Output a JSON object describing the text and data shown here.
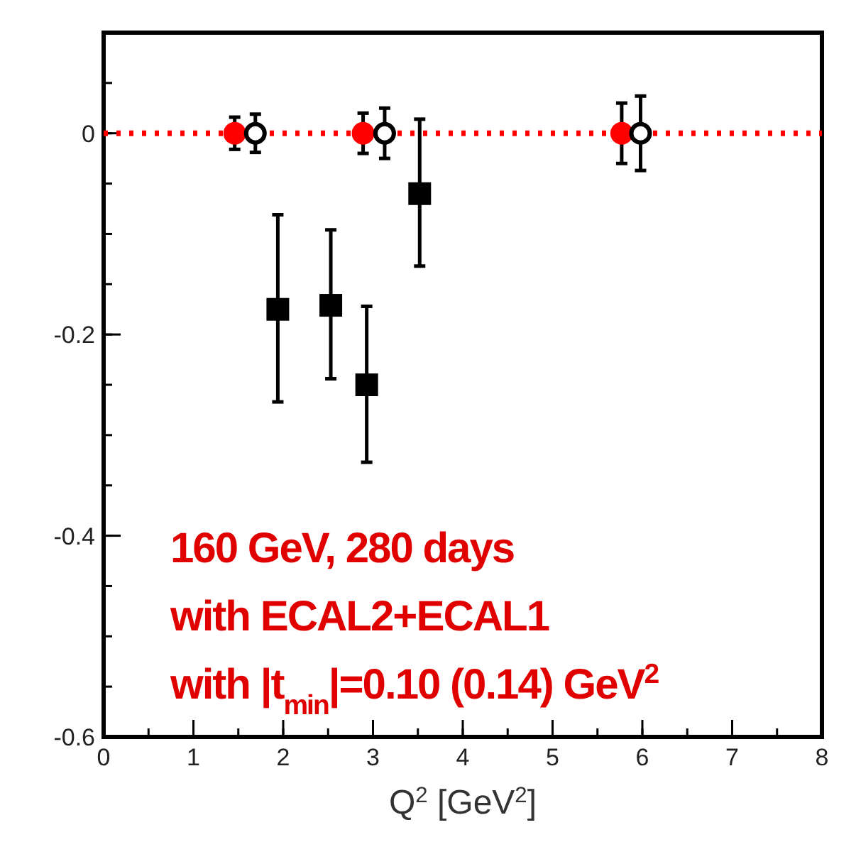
{
  "chart_data": {
    "type": "scatter",
    "xlabel": "Q$^{2}$ [GeV$^{2}$]",
    "xlim": [
      0,
      8
    ],
    "xticks": [
      0,
      1,
      2,
      3,
      4,
      5,
      6,
      7,
      8
    ],
    "ylim": [
      -0.6,
      0.1
    ],
    "yticks": [
      -0.6,
      -0.4,
      -0.2,
      0
    ],
    "grid": false,
    "series": [
      {
        "color": "#ff0000",
        "marker": "circle",
        "x": [
          1.46,
          2.89,
          5.77
        ],
        "values": [
          0,
          0,
          0
        ],
        "errors": [
          0.016,
          0.02,
          0.03
        ]
      },
      {
        "color": "#000000",
        "marker": "open-circle",
        "x": [
          1.69,
          3.13,
          5.98
        ],
        "values": [
          0,
          0,
          0
        ],
        "errors": [
          0.019,
          0.025,
          0.037
        ]
      },
      {
        "color": "#000000",
        "marker": "square",
        "x": [
          1.94,
          2.53,
          2.93,
          3.52
        ],
        "values": [
          -0.175,
          -0.171,
          -0.25,
          -0.06
        ],
        "errors": [
          [
            -0.267,
            -0.081
          ],
          [
            -0.244,
            -0.096
          ],
          [
            -0.327,
            -0.172
          ],
          [
            -0.132,
            0.014
          ]
        ]
      }
    ],
    "ref_lines": [
      {
        "axis": "y",
        "value": 0,
        "color": "#ff0000",
        "line_style": "dotted"
      }
    ],
    "annotations": [
      "160 GeV, 280 days",
      "with ECAL2+ECAL1",
      "with |t$_{min}$|=0.10 (0.14) GeV$^{2}$"
    ]
  }
}
